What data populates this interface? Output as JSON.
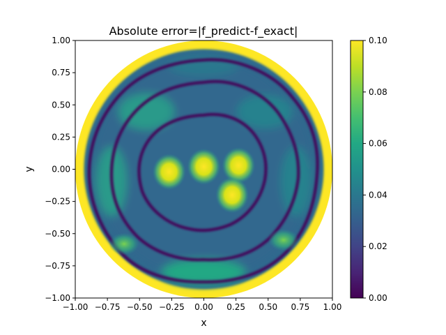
{
  "chart_data": {
    "type": "heatmap",
    "title": "Absolute error=|f_predict-f_exact|",
    "xlabel": "x",
    "ylabel": "y",
    "xlim": [
      -1.0,
      1.0
    ],
    "ylim": [
      -1.0,
      1.0
    ],
    "xticks": [
      "−1.00",
      "−0.75",
      "−0.50",
      "−0.25",
      "0.00",
      "0.25",
      "0.50",
      "0.75",
      "1.00"
    ],
    "xtick_values": [
      -1.0,
      -0.75,
      -0.5,
      -0.25,
      0.0,
      0.25,
      0.5,
      0.75,
      1.0
    ],
    "yticks": [
      "1.00",
      "0.75",
      "0.50",
      "0.25",
      "0.00",
      "−0.25",
      "−0.50",
      "−0.75",
      "−1.00"
    ],
    "ytick_values": [
      1.0,
      0.75,
      0.5,
      0.25,
      0.0,
      -0.25,
      -0.5,
      -0.75,
      -1.0
    ],
    "domain": "disk of radius 1 centered at (0, 0)",
    "colormap": "viridis",
    "color_range": [
      0.0,
      0.1
    ],
    "colorbar_ticks": [
      "0.00",
      "0.02",
      "0.04",
      "0.06",
      "0.08",
      "0.10"
    ],
    "colorbar_tick_values": [
      0.0,
      0.02,
      0.04,
      0.06,
      0.08,
      0.1
    ],
    "grid": false,
    "hotspots": [
      {
        "x": 0.0,
        "y": 0.02,
        "value": 0.1
      },
      {
        "x": -0.27,
        "y": -0.02,
        "value": 0.1
      },
      {
        "x": 0.27,
        "y": 0.03,
        "value": 0.1
      },
      {
        "x": 0.22,
        "y": -0.2,
        "value": 0.1
      },
      {
        "x": 0.62,
        "y": -0.55,
        "value": 0.085
      },
      {
        "x": -0.62,
        "y": -0.58,
        "value": 0.075
      }
    ],
    "boundary_error": 0.1
  }
}
